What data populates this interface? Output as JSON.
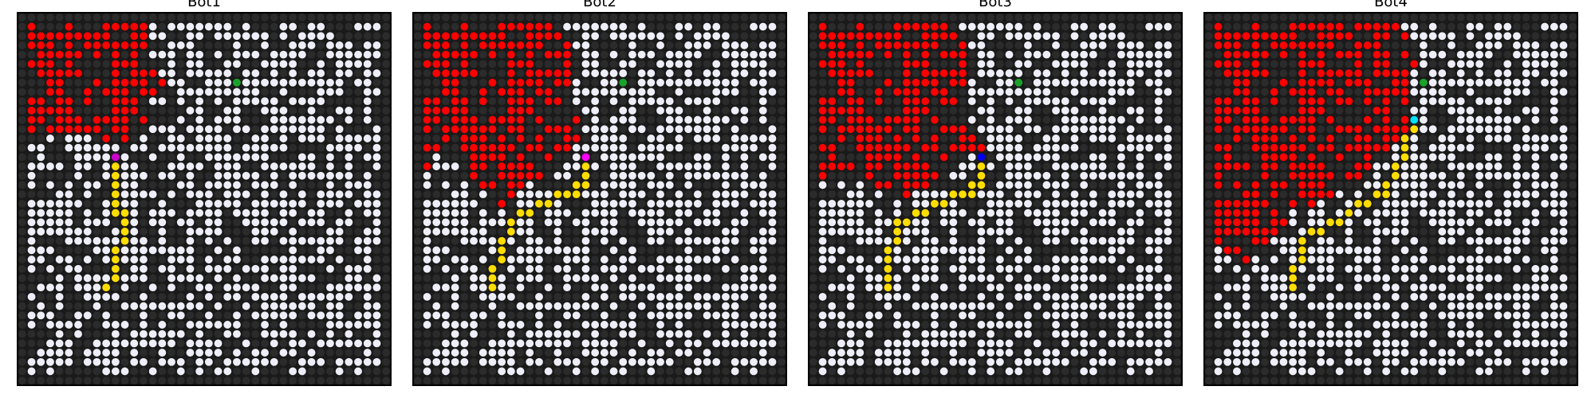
{
  "figure": {
    "grid_size": 40,
    "colors": {
      "wall": "#2b2b2b",
      "open": "#eeeef8",
      "fire": "#ff0000",
      "path": "#ffdd00",
      "button": "#1aa32a",
      "background": "#1a1a1a",
      "border": "#000000"
    },
    "legend_semantics": {
      "wall": "closed cell",
      "open": "open cell",
      "fire": "burning cell",
      "path": "bot path",
      "button": "goal"
    }
  },
  "panels": [
    {
      "title": "Bot1",
      "bot_color": "#cc00cc",
      "bot_cell": [
        15,
        10
      ],
      "goal_cell": [
        7,
        23
      ],
      "fire_polygon": [
        [
          0.6,
          0.8
        ],
        [
          14.5,
          0.8
        ],
        [
          14.5,
          6
        ],
        [
          16,
          7.5
        ],
        [
          16,
          8.3
        ],
        [
          14.5,
          9.3
        ],
        [
          14,
          12.2
        ],
        [
          12.2,
          13
        ],
        [
          10.6,
          14.5
        ],
        [
          8.8,
          14.5
        ],
        [
          7.8,
          13
        ],
        [
          5.2,
          12.6
        ],
        [
          1.6,
          12.6
        ],
        [
          0.6,
          13.2
        ]
      ],
      "path": [
        [
          15,
          10
        ],
        [
          16,
          10
        ],
        [
          17,
          10
        ],
        [
          18,
          10
        ],
        [
          19,
          10
        ],
        [
          20,
          10
        ],
        [
          21,
          10
        ],
        [
          21,
          11
        ],
        [
          22,
          11
        ],
        [
          23,
          11
        ],
        [
          24,
          11
        ],
        [
          25,
          10
        ],
        [
          26,
          10
        ],
        [
          27,
          10
        ],
        [
          28,
          10
        ],
        [
          29,
          9
        ]
      ]
    },
    {
      "title": "Bot2",
      "bot_color": "#ff00ff",
      "bot_cell": [
        15,
        18
      ],
      "goal_cell": [
        7,
        22
      ],
      "fire_polygon": [
        [
          0.6,
          0.8
        ],
        [
          15.8,
          0.8
        ],
        [
          15.8,
          2.2
        ],
        [
          16.8,
          2.2
        ],
        [
          16.8,
          9.8
        ],
        [
          17.6,
          10.5
        ],
        [
          17.6,
          12.8
        ],
        [
          18.3,
          13.5
        ],
        [
          18.3,
          14.5
        ],
        [
          17,
          14.5
        ],
        [
          16,
          16.3
        ],
        [
          14.3,
          17.2
        ],
        [
          12.7,
          18.3
        ],
        [
          11.2,
          19.6
        ],
        [
          10.2,
          20.7
        ],
        [
          9.2,
          20.7
        ],
        [
          8.2,
          19.4
        ],
        [
          6.8,
          17.9
        ],
        [
          3.7,
          15.4
        ],
        [
          2.3,
          14.5
        ],
        [
          1.2,
          17.4
        ],
        [
          0.6,
          17.4
        ]
      ],
      "path": [
        [
          15,
          18
        ],
        [
          16,
          18
        ],
        [
          17,
          18
        ],
        [
          18,
          18
        ],
        [
          18,
          17
        ],
        [
          19,
          17
        ],
        [
          19,
          16
        ],
        [
          19,
          15
        ],
        [
          20,
          14
        ],
        [
          20,
          13
        ],
        [
          21,
          12
        ],
        [
          21,
          11
        ],
        [
          22,
          10
        ],
        [
          23,
          10
        ],
        [
          24,
          9
        ],
        [
          25,
          9
        ],
        [
          26,
          9
        ],
        [
          27,
          8
        ],
        [
          28,
          8
        ],
        [
          29,
          8
        ]
      ]
    },
    {
      "title": "Bot3",
      "bot_color": "#0000ee",
      "bot_cell": [
        15,
        18
      ],
      "goal_cell": [
        7,
        22
      ],
      "fire_polygon": [
        [
          0.6,
          0.8
        ],
        [
          16.4,
          0.8
        ],
        [
          16.4,
          2.4
        ],
        [
          17.3,
          2.4
        ],
        [
          17.3,
          13.2
        ],
        [
          18.2,
          13.2
        ],
        [
          18.2,
          14
        ],
        [
          19.3,
          14.5
        ],
        [
          18.7,
          15.2
        ],
        [
          17.5,
          15.5
        ],
        [
          16.5,
          16.3
        ],
        [
          15,
          17
        ],
        [
          13.2,
          18.2
        ],
        [
          11.6,
          19.4
        ],
        [
          10.6,
          20.3
        ],
        [
          8.6,
          20.3
        ],
        [
          7.4,
          19.1
        ],
        [
          4.8,
          18.1
        ],
        [
          2.2,
          18.1
        ],
        [
          1.2,
          17.4
        ],
        [
          0.6,
          17.4
        ]
      ],
      "path": [
        [
          15,
          18
        ],
        [
          16,
          18
        ],
        [
          17,
          18
        ],
        [
          18,
          18
        ],
        [
          18,
          17
        ],
        [
          19,
          17
        ],
        [
          19,
          16
        ],
        [
          19,
          15
        ],
        [
          20,
          14
        ],
        [
          20,
          13
        ],
        [
          21,
          12
        ],
        [
          21,
          11
        ],
        [
          22,
          10
        ],
        [
          22,
          9
        ],
        [
          23,
          9
        ],
        [
          24,
          9
        ],
        [
          25,
          8
        ],
        [
          26,
          8
        ],
        [
          27,
          8
        ],
        [
          28,
          8
        ],
        [
          29,
          8
        ]
      ]
    },
    {
      "title": "Bot4",
      "bot_color": "#00e0ff",
      "bot_cell": [
        11,
        22
      ],
      "goal_cell": [
        7,
        23
      ],
      "fire_polygon": [
        [
          0.6,
          0.8
        ],
        [
          19.8,
          0.8
        ],
        [
          21.3,
          1.4
        ],
        [
          23.3,
          3.8
        ],
        [
          23.3,
          6.2
        ],
        [
          22.4,
          6.2
        ],
        [
          22.4,
          12.8
        ],
        [
          21.7,
          12.8
        ],
        [
          20.6,
          14.3
        ],
        [
          19.2,
          15.6
        ],
        [
          17.4,
          17
        ],
        [
          15.2,
          18.6
        ],
        [
          13.4,
          19.6
        ],
        [
          11.8,
          20.8
        ],
        [
          9.4,
          21.2
        ],
        [
          8.6,
          24.2
        ],
        [
          6.8,
          24.2
        ],
        [
          5.8,
          26.1
        ],
        [
          4.8,
          27.3
        ],
        [
          3.2,
          27.4
        ],
        [
          2.2,
          25.8
        ],
        [
          0.6,
          24.3
        ]
      ],
      "path": [
        [
          11,
          22
        ],
        [
          12,
          22
        ],
        [
          13,
          21
        ],
        [
          14,
          21
        ],
        [
          15,
          21
        ],
        [
          16,
          20
        ],
        [
          17,
          20
        ],
        [
          18,
          19
        ],
        [
          19,
          19
        ],
        [
          19,
          18
        ],
        [
          20,
          17
        ],
        [
          20,
          16
        ],
        [
          21,
          15
        ],
        [
          22,
          14
        ],
        [
          22,
          13
        ],
        [
          23,
          12
        ],
        [
          23,
          11
        ],
        [
          24,
          10
        ],
        [
          25,
          10
        ],
        [
          26,
          10
        ],
        [
          27,
          9
        ],
        [
          28,
          9
        ],
        [
          29,
          9
        ]
      ]
    }
  ]
}
